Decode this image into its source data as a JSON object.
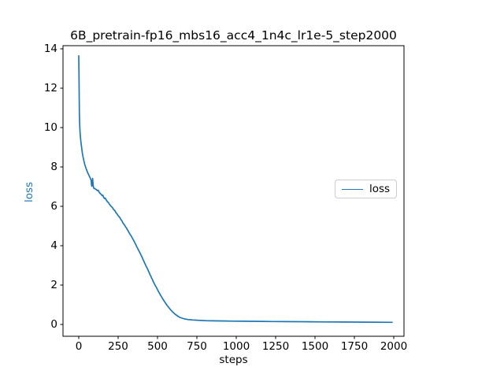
{
  "figure": {
    "title": "6B_pretrain-fp16_mbs16_acc4_1n4c_lr1e-5_step2000",
    "xlabel": "steps",
    "ylabel": "loss",
    "ylabel_color": "#1f77b4",
    "background_color": "#ffffff",
    "spine_color": "#000000"
  },
  "legend": {
    "entries": [
      {
        "label": "loss",
        "color": "#1f77b4"
      }
    ]
  },
  "chart_data": {
    "type": "line",
    "title": "6B_pretrain-fp16_mbs16_acc4_1n4c_lr1e-5_step2000",
    "xlabel": "steps",
    "ylabel": "loss",
    "xlim": [
      -100,
      2065
    ],
    "ylim": [
      -0.6,
      14.16
    ],
    "xticks": [
      0,
      250,
      500,
      750,
      1000,
      1250,
      1500,
      1750,
      2000
    ],
    "yticks": [
      0,
      2,
      4,
      6,
      8,
      10,
      12,
      14
    ],
    "grid": false,
    "legend_position": "center-right",
    "series": [
      {
        "name": "loss",
        "color": "#1f77b4",
        "line_width": 1.7,
        "points": [
          [
            0,
            13.65
          ],
          [
            1,
            13.0
          ],
          [
            2,
            12.3
          ],
          [
            3,
            11.5
          ],
          [
            4,
            10.75
          ],
          [
            6,
            10.15
          ],
          [
            8,
            9.8
          ],
          [
            11,
            9.5
          ],
          [
            14,
            9.25
          ],
          [
            18,
            9.0
          ],
          [
            22,
            8.75
          ],
          [
            27,
            8.52
          ],
          [
            32,
            8.33
          ],
          [
            38,
            8.13
          ],
          [
            44,
            7.98
          ],
          [
            50,
            7.85
          ],
          [
            56,
            7.72
          ],
          [
            62,
            7.62
          ],
          [
            68,
            7.52
          ],
          [
            72,
            7.45
          ],
          [
            76,
            7.38
          ],
          [
            79,
            7.3
          ],
          [
            81,
            7.1
          ],
          [
            83,
            7.02
          ],
          [
            85,
            7.12
          ],
          [
            88,
            7.42
          ],
          [
            91,
            7.1
          ],
          [
            94,
            6.95
          ],
          [
            98,
            6.9
          ],
          [
            103,
            6.9
          ],
          [
            108,
            6.87
          ],
          [
            113,
            6.84
          ],
          [
            118,
            6.8
          ],
          [
            123,
            6.82
          ],
          [
            128,
            6.74
          ],
          [
            133,
            6.68
          ],
          [
            138,
            6.64
          ],
          [
            143,
            6.6
          ],
          [
            148,
            6.55
          ],
          [
            153,
            6.56
          ],
          [
            158,
            6.46
          ],
          [
            163,
            6.4
          ],
          [
            168,
            6.42
          ],
          [
            173,
            6.34
          ],
          [
            178,
            6.28
          ],
          [
            183,
            6.22
          ],
          [
            188,
            6.2
          ],
          [
            193,
            6.12
          ],
          [
            198,
            6.08
          ],
          [
            203,
            6.02
          ],
          [
            208,
            5.98
          ],
          [
            213,
            5.95
          ],
          [
            218,
            5.88
          ],
          [
            223,
            5.82
          ],
          [
            228,
            5.8
          ],
          [
            233,
            5.72
          ],
          [
            238,
            5.66
          ],
          [
            243,
            5.62
          ],
          [
            248,
            5.55
          ],
          [
            253,
            5.5
          ],
          [
            258,
            5.46
          ],
          [
            263,
            5.4
          ],
          [
            268,
            5.32
          ],
          [
            273,
            5.28
          ],
          [
            278,
            5.2
          ],
          [
            283,
            5.12
          ],
          [
            288,
            5.08
          ],
          [
            293,
            5.02
          ],
          [
            298,
            4.95
          ],
          [
            303,
            4.9
          ],
          [
            308,
            4.82
          ],
          [
            313,
            4.76
          ],
          [
            318,
            4.68
          ],
          [
            323,
            4.62
          ],
          [
            328,
            4.55
          ],
          [
            333,
            4.5
          ],
          [
            338,
            4.42
          ],
          [
            343,
            4.35
          ],
          [
            348,
            4.28
          ],
          [
            353,
            4.2
          ],
          [
            358,
            4.12
          ],
          [
            363,
            4.05
          ],
          [
            368,
            3.95
          ],
          [
            373,
            3.88
          ],
          [
            378,
            3.8
          ],
          [
            383,
            3.72
          ],
          [
            388,
            3.65
          ],
          [
            393,
            3.56
          ],
          [
            398,
            3.48
          ],
          [
            403,
            3.4
          ],
          [
            408,
            3.3
          ],
          [
            413,
            3.22
          ],
          [
            418,
            3.12
          ],
          [
            423,
            3.05
          ],
          [
            428,
            2.95
          ],
          [
            433,
            2.88
          ],
          [
            438,
            2.8
          ],
          [
            443,
            2.7
          ],
          [
            448,
            2.62
          ],
          [
            453,
            2.52
          ],
          [
            458,
            2.45
          ],
          [
            463,
            2.35
          ],
          [
            468,
            2.28
          ],
          [
            473,
            2.18
          ],
          [
            478,
            2.1
          ],
          [
            483,
            2.02
          ],
          [
            488,
            1.95
          ],
          [
            493,
            1.88
          ],
          [
            498,
            1.8
          ],
          [
            503,
            1.72
          ],
          [
            508,
            1.65
          ],
          [
            513,
            1.58
          ],
          [
            518,
            1.5
          ],
          [
            523,
            1.44
          ],
          [
            528,
            1.37
          ],
          [
            533,
            1.3
          ],
          [
            538,
            1.24
          ],
          [
            543,
            1.18
          ],
          [
            548,
            1.12
          ],
          [
            553,
            1.06
          ],
          [
            558,
            1.0
          ],
          [
            563,
            0.95
          ],
          [
            568,
            0.9
          ],
          [
            573,
            0.85
          ],
          [
            578,
            0.8
          ],
          [
            583,
            0.75
          ],
          [
            588,
            0.71
          ],
          [
            593,
            0.66
          ],
          [
            598,
            0.62
          ],
          [
            605,
            0.57
          ],
          [
            612,
            0.52
          ],
          [
            619,
            0.48
          ],
          [
            626,
            0.44
          ],
          [
            633,
            0.4
          ],
          [
            640,
            0.37
          ],
          [
            648,
            0.34
          ],
          [
            656,
            0.32
          ],
          [
            664,
            0.3
          ],
          [
            672,
            0.28
          ],
          [
            682,
            0.27
          ],
          [
            694,
            0.25
          ],
          [
            708,
            0.24
          ],
          [
            724,
            0.23
          ],
          [
            742,
            0.22
          ],
          [
            762,
            0.21
          ],
          [
            785,
            0.2
          ],
          [
            815,
            0.19
          ],
          [
            850,
            0.185
          ],
          [
            890,
            0.18
          ],
          [
            935,
            0.175
          ],
          [
            985,
            0.17
          ],
          [
            1040,
            0.165
          ],
          [
            1100,
            0.16
          ],
          [
            1165,
            0.155
          ],
          [
            1235,
            0.15
          ],
          [
            1310,
            0.145
          ],
          [
            1390,
            0.14
          ],
          [
            1475,
            0.135
          ],
          [
            1565,
            0.13
          ],
          [
            1660,
            0.125
          ],
          [
            1760,
            0.12
          ],
          [
            1860,
            0.115
          ],
          [
            1990,
            0.11
          ]
        ]
      }
    ]
  }
}
